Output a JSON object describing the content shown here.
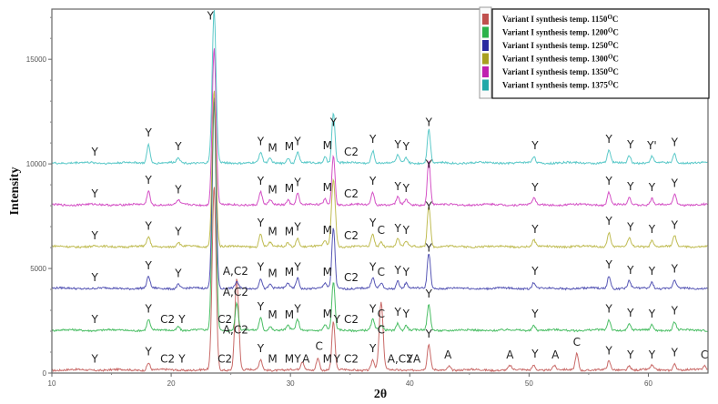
{
  "chart_data": {
    "type": "line",
    "title": "",
    "xlabel": "2θ",
    "ylabel": "Intensity",
    "xlim": [
      10,
      65
    ],
    "ylim": [
      0,
      17400
    ],
    "x_ticks": [
      10,
      20,
      30,
      40,
      50,
      60
    ],
    "y_ticks": [
      0,
      5000,
      10000,
      15000
    ],
    "grid": false,
    "legend_position": "top-right",
    "series": [
      {
        "name": "Variant I synthesis temp. 1150°C",
        "color": "#c0504d",
        "offset": 150,
        "peaks": [
          [
            18.1,
            350
          ],
          [
            23.6,
            8800
          ],
          [
            25.5,
            4400
          ],
          [
            27.5,
            500
          ],
          [
            31.0,
            400
          ],
          [
            32.3,
            600
          ],
          [
            33.6,
            2300
          ],
          [
            36.9,
            500
          ],
          [
            37.6,
            3200
          ],
          [
            41.6,
            1200
          ],
          [
            43.3,
            200
          ],
          [
            48.4,
            200
          ],
          [
            50.4,
            250
          ],
          [
            52.1,
            200
          ],
          [
            54.0,
            800
          ],
          [
            56.7,
            400
          ],
          [
            58.4,
            200
          ],
          [
            60.3,
            200
          ],
          [
            62.2,
            300
          ],
          [
            64.7,
            200
          ]
        ]
      },
      {
        "name": "Variant I synthesis temp. 1200°C",
        "color": "#2cb34a",
        "offset": 2050,
        "peaks": [
          [
            18.1,
            500
          ],
          [
            20.6,
            200
          ],
          [
            23.6,
            11000
          ],
          [
            25.5,
            1300
          ],
          [
            27.5,
            600
          ],
          [
            28.3,
            200
          ],
          [
            29.8,
            200
          ],
          [
            30.6,
            500
          ],
          [
            32.9,
            250
          ],
          [
            33.6,
            2300
          ],
          [
            36.9,
            500
          ],
          [
            37.6,
            250
          ],
          [
            39.0,
            350
          ],
          [
            39.7,
            250
          ],
          [
            41.6,
            1200
          ],
          [
            50.4,
            250
          ],
          [
            56.7,
            500
          ],
          [
            58.4,
            300
          ],
          [
            60.3,
            250
          ],
          [
            62.2,
            400
          ]
        ]
      },
      {
        "name": "Variant I synthesis temp. 1250°C",
        "color": "#3a3aa8",
        "offset": 4050,
        "peaks": [
          [
            18.1,
            550
          ],
          [
            20.6,
            200
          ],
          [
            23.6,
            9200
          ],
          [
            25.5,
            300
          ],
          [
            27.5,
            500
          ],
          [
            28.3,
            200
          ],
          [
            29.8,
            250
          ],
          [
            30.6,
            500
          ],
          [
            32.9,
            250
          ],
          [
            33.6,
            2900
          ],
          [
            36.9,
            500
          ],
          [
            37.6,
            250
          ],
          [
            39.0,
            350
          ],
          [
            39.7,
            250
          ],
          [
            41.6,
            1700
          ],
          [
            50.4,
            300
          ],
          [
            56.7,
            600
          ],
          [
            58.4,
            350
          ],
          [
            60.3,
            300
          ],
          [
            62.2,
            400
          ]
        ]
      },
      {
        "name": "Variant I synthesis temp. 1300°C",
        "color": "#b5b035",
        "offset": 6050,
        "peaks": [
          [
            18.1,
            450
          ],
          [
            20.6,
            200
          ],
          [
            23.6,
            7500
          ],
          [
            27.5,
            600
          ],
          [
            28.3,
            200
          ],
          [
            29.8,
            200
          ],
          [
            30.6,
            400
          ],
          [
            32.9,
            250
          ],
          [
            33.6,
            3200
          ],
          [
            36.9,
            600
          ],
          [
            37.6,
            250
          ],
          [
            39.0,
            350
          ],
          [
            39.7,
            250
          ],
          [
            41.6,
            2000
          ],
          [
            50.4,
            300
          ],
          [
            56.7,
            700
          ],
          [
            58.4,
            400
          ],
          [
            60.3,
            300
          ],
          [
            62.2,
            500
          ]
        ]
      },
      {
        "name": "Variant I synthesis temp. 1350°C",
        "color": "#cc33bb",
        "offset": 8050,
        "peaks": [
          [
            18.1,
            650
          ],
          [
            20.6,
            200
          ],
          [
            23.6,
            7500
          ],
          [
            27.5,
            600
          ],
          [
            28.3,
            200
          ],
          [
            29.8,
            250
          ],
          [
            30.6,
            550
          ],
          [
            32.9,
            300
          ],
          [
            33.6,
            2400
          ],
          [
            36.9,
            600
          ],
          [
            39.0,
            350
          ],
          [
            39.7,
            250
          ],
          [
            41.6,
            2100
          ],
          [
            50.4,
            300
          ],
          [
            56.7,
            600
          ],
          [
            58.4,
            350
          ],
          [
            60.3,
            300
          ],
          [
            62.2,
            500
          ]
        ]
      },
      {
        "name": "Variant I synthesis temp. 1375°C",
        "color": "#3fbfbf",
        "offset": 10050,
        "peaks": [
          [
            18.1,
            900
          ],
          [
            20.6,
            250
          ],
          [
            23.6,
            7300
          ],
          [
            27.5,
            500
          ],
          [
            28.3,
            200
          ],
          [
            29.8,
            250
          ],
          [
            30.6,
            500
          ],
          [
            32.9,
            300
          ],
          [
            33.6,
            2400
          ],
          [
            36.9,
            600
          ],
          [
            39.0,
            350
          ],
          [
            39.7,
            250
          ],
          [
            41.6,
            1600
          ],
          [
            50.4,
            300
          ],
          [
            56.7,
            600
          ],
          [
            58.4,
            350
          ],
          [
            60.3,
            300
          ],
          [
            62.2,
            450
          ]
        ]
      }
    ],
    "annotations": [
      {
        "series": 0,
        "labels": [
          [
            "Y",
            13.6
          ],
          [
            "Y",
            18.1
          ],
          [
            "C2",
            19.7
          ],
          [
            "Y",
            20.9
          ],
          [
            "C2",
            24.5
          ],
          [
            "A,C2",
            25.4
          ],
          [
            "Y",
            27.5
          ],
          [
            "M",
            28.5
          ],
          [
            "M",
            29.9
          ],
          [
            "Y",
            30.6
          ],
          [
            "A",
            31.3
          ],
          [
            "C",
            32.4
          ],
          [
            "M",
            33.1
          ],
          [
            "Y",
            33.9
          ],
          [
            "C2",
            35.1
          ],
          [
            "Y",
            36.9
          ],
          [
            "C",
            37.6
          ],
          [
            "A,C2",
            39.2
          ],
          [
            "Y",
            40.0
          ],
          [
            "A",
            40.6
          ],
          [
            "Y",
            41.6
          ],
          [
            "A",
            43.2
          ],
          [
            "A",
            48.4
          ],
          [
            "Y",
            50.5
          ],
          [
            "A",
            52.2
          ],
          [
            "C",
            54.0
          ],
          [
            "Y",
            56.7
          ],
          [
            "Y",
            58.5
          ],
          [
            "Y",
            60.3
          ],
          [
            "Y",
            62.2
          ],
          [
            "C",
            64.7
          ]
        ]
      },
      {
        "series": 1,
        "labels": [
          [
            "Y",
            13.6
          ],
          [
            "Y",
            18.1
          ],
          [
            "C2",
            19.7
          ],
          [
            "Y",
            20.9
          ],
          [
            "C2",
            24.5
          ],
          [
            "A,C2",
            25.4
          ],
          [
            "Y",
            27.5
          ],
          [
            "M",
            28.5
          ],
          [
            "M",
            29.9
          ],
          [
            "Y",
            30.6
          ],
          [
            "M",
            33.1
          ],
          [
            "Y",
            33.9
          ],
          [
            "C2",
            35.1
          ],
          [
            "Y",
            36.9
          ],
          [
            "C",
            37.6
          ],
          [
            "Y",
            39.0
          ],
          [
            "Y",
            39.7
          ],
          [
            "Y",
            41.6
          ],
          [
            "Y",
            50.5
          ],
          [
            "Y",
            56.7
          ],
          [
            "Y",
            58.5
          ],
          [
            "Y",
            60.3
          ],
          [
            "Y",
            62.2
          ]
        ]
      },
      {
        "series": 2,
        "labels": [
          [
            "Y",
            13.6
          ],
          [
            "Y",
            18.1
          ],
          [
            "Y",
            20.6
          ],
          [
            "A,C2",
            25.4
          ],
          [
            "Y",
            27.5
          ],
          [
            "M",
            28.5
          ],
          [
            "M",
            29.9
          ],
          [
            "Y",
            30.6
          ],
          [
            "M",
            33.1
          ],
          [
            "C2",
            35.1
          ],
          [
            "Y",
            36.9
          ],
          [
            "C",
            37.6
          ],
          [
            "Y",
            39.0
          ],
          [
            "Y",
            39.7
          ],
          [
            "Y",
            41.6
          ],
          [
            "Y",
            50.5
          ],
          [
            "Y",
            56.7
          ],
          [
            "Y",
            58.5
          ],
          [
            "Y",
            60.3
          ],
          [
            "Y",
            62.2
          ]
        ]
      },
      {
        "series": 3,
        "labels": [
          [
            "Y",
            13.6
          ],
          [
            "Y",
            18.1
          ],
          [
            "Y",
            20.6
          ],
          [
            "Y",
            27.5
          ],
          [
            "M",
            28.5
          ],
          [
            "M",
            29.9
          ],
          [
            "Y",
            30.6
          ],
          [
            "M",
            33.1
          ],
          [
            "C2",
            35.1
          ],
          [
            "Y",
            36.9
          ],
          [
            "C",
            37.6
          ],
          [
            "Y",
            39.0
          ],
          [
            "Y",
            39.7
          ],
          [
            "Y",
            41.6
          ],
          [
            "Y",
            50.5
          ],
          [
            "Y",
            56.7
          ],
          [
            "Y",
            58.5
          ],
          [
            "Y",
            60.3
          ],
          [
            "Y",
            62.2
          ]
        ]
      },
      {
        "series": 4,
        "labels": [
          [
            "Y",
            13.6
          ],
          [
            "Y",
            18.1
          ],
          [
            "Y",
            20.6
          ],
          [
            "Y",
            27.5
          ],
          [
            "M",
            28.5
          ],
          [
            "M",
            29.9
          ],
          [
            "Y",
            30.6
          ],
          [
            "M",
            33.1
          ],
          [
            "C2",
            35.1
          ],
          [
            "Y",
            36.9
          ],
          [
            "Y",
            39.0
          ],
          [
            "Y",
            39.7
          ],
          [
            "Y",
            41.6
          ],
          [
            "Y",
            50.5
          ],
          [
            "Y",
            56.7
          ],
          [
            "Y",
            58.5
          ],
          [
            "Y",
            60.3
          ],
          [
            "Y",
            62.2
          ]
        ]
      },
      {
        "series": 5,
        "labels": [
          [
            "Y",
            13.6
          ],
          [
            "Y",
            18.1
          ],
          [
            "Y",
            20.6
          ],
          [
            "Y",
            27.5
          ],
          [
            "M",
            28.5
          ],
          [
            "M",
            29.9
          ],
          [
            "Y",
            30.6
          ],
          [
            "M",
            33.1
          ],
          [
            "Y",
            33.6
          ],
          [
            "C2",
            35.1
          ],
          [
            "Y",
            36.9
          ],
          [
            "Y",
            39.0
          ],
          [
            "Y",
            39.7
          ],
          [
            "Y",
            41.6
          ],
          [
            "Y",
            50.5
          ],
          [
            "Y",
            56.7
          ],
          [
            "Y",
            58.5
          ],
          [
            "Y'",
            60.3
          ],
          [
            "Y",
            62.2
          ],
          [
            "Y",
            23.3
          ]
        ]
      }
    ]
  },
  "legend": {
    "items": [
      {
        "label": "Variant I synthesis temp. 1150",
        "sup": "O",
        "unit": "C",
        "color": "#c0504d"
      },
      {
        "label": "Variant I synthesis temp. 1200",
        "sup": "O",
        "unit": "C",
        "color": "#2cb34a"
      },
      {
        "label": "Variant I synthesis temp. 1250",
        "sup": "O",
        "unit": "C",
        "color": "#2a2aa0"
      },
      {
        "label": "Variant I synthesis temp. 1300",
        "sup": "O",
        "unit": "C",
        "color": "#a8a020"
      },
      {
        "label": "Variant I synthesis temp. 1350",
        "sup": "O",
        "unit": "C",
        "color": "#c020b0"
      },
      {
        "label": "Variant I synthesis temp. 1375",
        "sup": "O",
        "unit": "C",
        "color": "#20a8a8"
      }
    ]
  },
  "axes": {
    "x_title": "2θ",
    "y_title": "Intensity",
    "x_tick_labels": [
      "10",
      "20",
      "30",
      "40",
      "50",
      "60"
    ],
    "y_tick_labels": [
      "0",
      "5000",
      "10000",
      "15000"
    ]
  }
}
